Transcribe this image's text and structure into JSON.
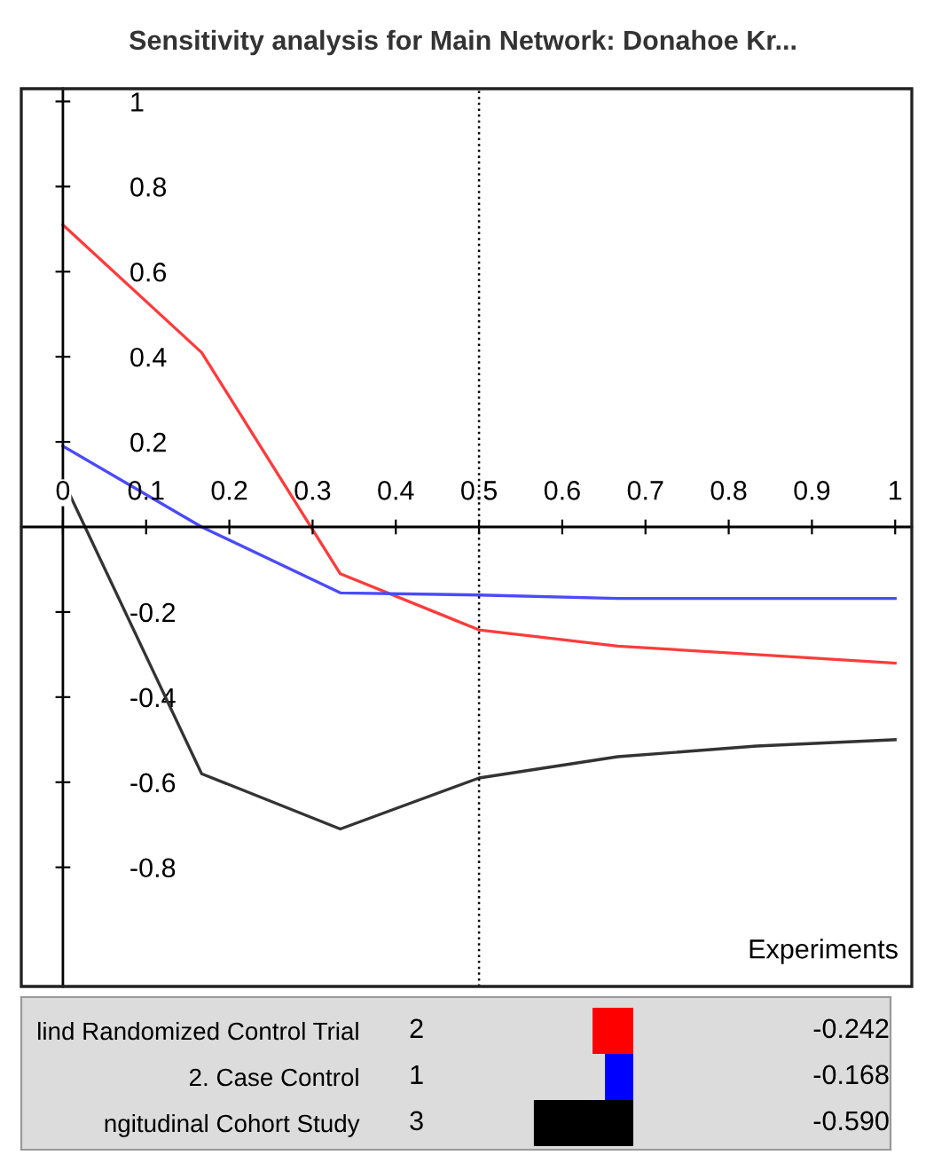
{
  "chart_data": [
    {
      "type": "line",
      "title": "Sensitivity analysis for Main Network: Donahoe Kr...",
      "xlabel": "Experiments",
      "x": [
        0,
        0.1667,
        0.3333,
        0.5,
        0.6667,
        0.8333,
        1
      ],
      "series": [
        {
          "color": "#ff3b3b",
          "values": [
            0.71,
            0.41,
            -0.11,
            -0.242,
            -0.28,
            -0.3,
            -0.32
          ]
        },
        {
          "color": "#4a4aff",
          "values": [
            0.19,
            0.0,
            -0.155,
            -0.16,
            -0.168,
            -0.168,
            -0.168
          ]
        },
        {
          "color": "#333333",
          "values": [
            0.11,
            -0.58,
            -0.71,
            -0.59,
            -0.54,
            -0.515,
            -0.5
          ]
        }
      ],
      "xlim": [
        -0.05,
        1.02
      ],
      "ylim": [
        -1.08,
        1.03
      ],
      "xticks": [
        {
          "value": 0,
          "label": "0"
        },
        0.1,
        0.2,
        0.3,
        0.4,
        0.5,
        0.6,
        0.7,
        0.8,
        0.9,
        1
      ],
      "yticks": [
        -0.8,
        -0.6,
        -0.4,
        -0.2,
        0.2,
        0.4,
        0.6,
        0.8,
        1
      ],
      "ref_lines": [
        {
          "axis": "x",
          "value": 0.5,
          "line_style": "dotted",
          "color": "#000000"
        }
      ],
      "grid": false,
      "marker": "none",
      "line_style": "solid"
    },
    {
      "type": "bar",
      "orientation": "horizontal",
      "categories": [
        "lind Randomized Control Trial",
        "2. Case Control",
        "ngitudinal Cohort Study"
      ],
      "values": [
        -0.242,
        -0.168,
        -0.59
      ],
      "colors": [
        "#ff0000",
        "#0000ff",
        "#000000"
      ],
      "value_labels": [
        "-0.242",
        "-0.168",
        "-0.590"
      ],
      "annotations": [
        "2",
        "1",
        "3"
      ],
      "xlim": [
        -0.6,
        0
      ],
      "tick_labels": "y"
    }
  ]
}
